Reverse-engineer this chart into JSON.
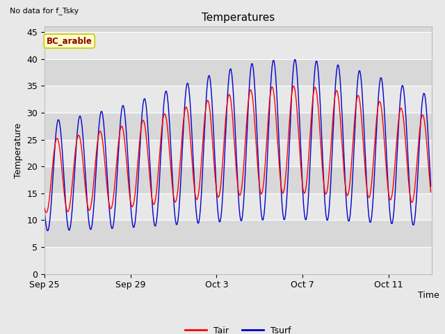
{
  "title": "Temperatures",
  "xlabel": "Time",
  "ylabel": "Temperature",
  "ylim": [
    0,
    46
  ],
  "yticks": [
    0,
    5,
    10,
    15,
    20,
    25,
    30,
    35,
    40,
    45
  ],
  "annotation_text": "No data for f_Tsky",
  "box_label": "BC_arable",
  "legend_labels": [
    "Tair",
    "Tsurf"
  ],
  "line_colors": [
    "#ff0000",
    "#0000cc"
  ],
  "fig_bg": "#e8e8e8",
  "plot_bg": "#d8d8d8",
  "band_color": "#e8e8e8",
  "n_days": 18,
  "n_points_per_day": 24,
  "title_fontsize": 11,
  "axis_fontsize": 9,
  "legend_fontsize": 9
}
